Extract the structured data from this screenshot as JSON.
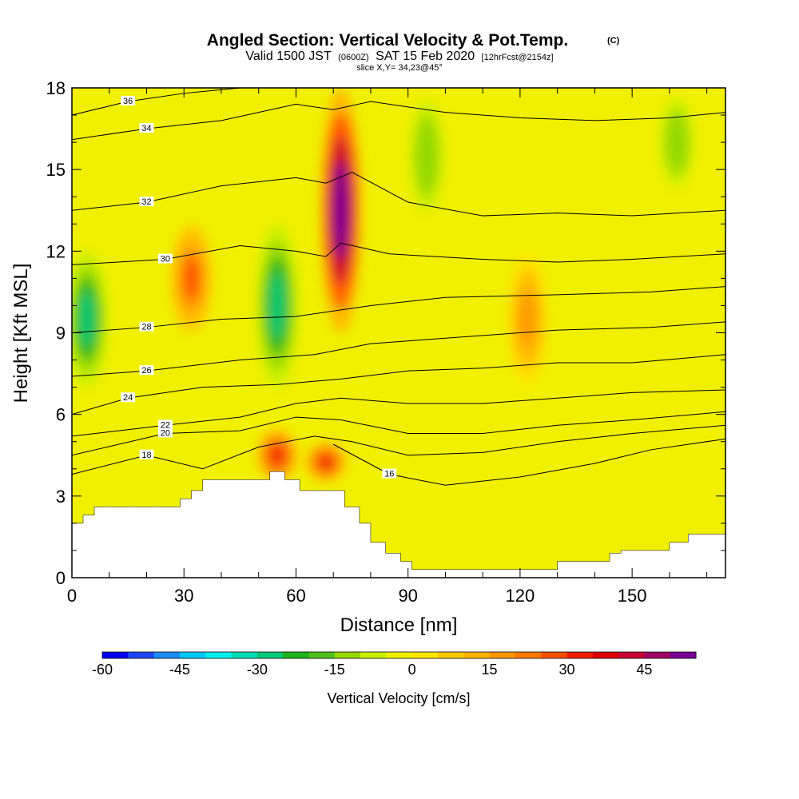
{
  "header": {
    "title": "Angled Section: Vertical Velocity & Pot.Temp.",
    "title_suffix": "(C)",
    "subtitle_part1": "Valid 1500 JST",
    "subtitle_zulu": "(0600Z)",
    "subtitle_part2": "SAT 15 Feb 2020",
    "subtitle_fcst": "[12hrFcst@2154z]",
    "slice_info": "slice X,Y= 34,23@45°"
  },
  "chart_data": {
    "type": "heatmap",
    "xlabel": "Distance [nm]",
    "ylabel": "Height [Kft MSL]",
    "xlim": [
      0,
      175
    ],
    "ylim": [
      0,
      18
    ],
    "x_ticks": [
      0,
      30,
      60,
      90,
      120,
      150
    ],
    "y_ticks": [
      0,
      3,
      6,
      9,
      12,
      15,
      18
    ],
    "colorbar": {
      "label": "Vertical Velocity [cm/s]",
      "range": [
        -60,
        55
      ],
      "step": 5,
      "tick_values": [
        -60,
        -45,
        -30,
        -15,
        0,
        15,
        30,
        45
      ],
      "colors": [
        "#0000f0",
        "#1e46f5",
        "#1e8cf5",
        "#00c8fa",
        "#00f0f0",
        "#00dcb4",
        "#00c878",
        "#1eb41e",
        "#50c01e",
        "#96d800",
        "#c8f000",
        "#f0f000",
        "#ffe600",
        "#ffc800",
        "#ffb400",
        "#ff9600",
        "#ff7800",
        "#ff5000",
        "#f01e00",
        "#dc0000",
        "#c80032",
        "#a00064",
        "#780096"
      ]
    },
    "vertical_velocity_features": [
      {
        "kind": "updraft",
        "x": 72,
        "y_min": 9,
        "y_max": 18,
        "peak": 55
      },
      {
        "kind": "downdraft",
        "x": 55,
        "y_min": 7,
        "y_max": 13,
        "peak": -30
      },
      {
        "kind": "downdraft",
        "x": 4,
        "y_min": 7,
        "y_max": 12,
        "peak": -30
      },
      {
        "kind": "updraft",
        "x": 32,
        "y_min": 9,
        "y_max": 13,
        "peak": 25
      },
      {
        "kind": "updraft",
        "x": 55,
        "y_min": 3.5,
        "y_max": 5.5,
        "peak": 30
      },
      {
        "kind": "updraft",
        "x": 68,
        "y_min": 3.5,
        "y_max": 5,
        "peak": 30
      },
      {
        "kind": "downdraft",
        "x": 95,
        "y_min": 13,
        "y_max": 18,
        "peak": -15
      },
      {
        "kind": "downdraft",
        "x": 162,
        "y_min": 14,
        "y_max": 18,
        "peak": -15
      },
      {
        "kind": "updraft",
        "x": 122,
        "y_min": 7,
        "y_max": 12,
        "peak": 15
      }
    ],
    "terrain": {
      "x": [
        0,
        3,
        6,
        10,
        15,
        23,
        29,
        32,
        35,
        45,
        53,
        57,
        61,
        65,
        70,
        73,
        77,
        80,
        84,
        88,
        91,
        104,
        126,
        130,
        144,
        147,
        156,
        160,
        165,
        175
      ],
      "height": [
        2,
        2.3,
        2.6,
        2.6,
        2.6,
        2.6,
        2.9,
        3.2,
        3.6,
        3.6,
        3.9,
        3.6,
        3.2,
        3.2,
        3.2,
        2.6,
        2.0,
        1.3,
        0.9,
        0.6,
        0.3,
        0.3,
        0.3,
        0.6,
        0.9,
        1.0,
        1.0,
        1.3,
        1.6,
        1.6
      ]
    },
    "potential_temperature_contours": [
      {
        "level": 16,
        "points": [
          [
            70,
            4.9
          ],
          [
            85,
            3.8
          ],
          [
            100,
            3.4
          ],
          [
            120,
            3.7
          ],
          [
            140,
            4.2
          ],
          [
            155,
            4.7
          ],
          [
            175,
            5.1
          ]
        ]
      },
      {
        "level": 18,
        "points": [
          [
            0,
            3.8
          ],
          [
            20,
            4.5
          ],
          [
            35,
            4.0
          ],
          [
            50,
            4.8
          ],
          [
            65,
            5.2
          ],
          [
            75,
            5.0
          ],
          [
            90,
            4.5
          ],
          [
            110,
            4.6
          ],
          [
            130,
            5.0
          ],
          [
            150,
            5.3
          ],
          [
            175,
            5.6
          ]
        ]
      },
      {
        "level": 20,
        "points": [
          [
            0,
            4.5
          ],
          [
            25,
            5.3
          ],
          [
            45,
            5.4
          ],
          [
            60,
            5.9
          ],
          [
            72,
            5.8
          ],
          [
            90,
            5.3
          ],
          [
            110,
            5.3
          ],
          [
            130,
            5.6
          ],
          [
            150,
            5.8
          ],
          [
            175,
            6.1
          ]
        ]
      },
      {
        "level": 22,
        "points": [
          [
            0,
            5.2
          ],
          [
            25,
            5.6
          ],
          [
            45,
            5.9
          ],
          [
            60,
            6.4
          ],
          [
            72,
            6.6
          ],
          [
            90,
            6.4
          ],
          [
            110,
            6.4
          ],
          [
            130,
            6.6
          ],
          [
            150,
            6.8
          ],
          [
            175,
            6.9
          ]
        ]
      },
      {
        "level": 24,
        "points": [
          [
            0,
            6.0
          ],
          [
            15,
            6.6
          ],
          [
            35,
            7.0
          ],
          [
            55,
            7.1
          ],
          [
            72,
            7.3
          ],
          [
            90,
            7.6
          ],
          [
            110,
            7.7
          ],
          [
            130,
            7.9
          ],
          [
            150,
            7.9
          ],
          [
            175,
            8.2
          ]
        ]
      },
      {
        "level": 26,
        "points": [
          [
            0,
            7.4
          ],
          [
            20,
            7.6
          ],
          [
            45,
            8.0
          ],
          [
            65,
            8.2
          ],
          [
            80,
            8.6
          ],
          [
            100,
            8.8
          ],
          [
            130,
            9.1
          ],
          [
            155,
            9.2
          ],
          [
            175,
            9.4
          ]
        ]
      },
      {
        "level": 28,
        "points": [
          [
            0,
            9.0
          ],
          [
            20,
            9.2
          ],
          [
            40,
            9.5
          ],
          [
            60,
            9.6
          ],
          [
            80,
            10.0
          ],
          [
            100,
            10.3
          ],
          [
            130,
            10.4
          ],
          [
            155,
            10.5
          ],
          [
            175,
            10.7
          ]
        ]
      },
      {
        "level": 30,
        "points": [
          [
            0,
            11.5
          ],
          [
            25,
            11.7
          ],
          [
            45,
            12.2
          ],
          [
            60,
            12.0
          ],
          [
            68,
            11.8
          ],
          [
            72,
            12.3
          ],
          [
            85,
            11.9
          ],
          [
            110,
            11.7
          ],
          [
            130,
            11.6
          ],
          [
            150,
            11.7
          ],
          [
            175,
            11.9
          ]
        ]
      },
      {
        "level": 32,
        "points": [
          [
            0,
            13.5
          ],
          [
            20,
            13.8
          ],
          [
            40,
            14.4
          ],
          [
            60,
            14.7
          ],
          [
            68,
            14.5
          ],
          [
            75,
            14.9
          ],
          [
            90,
            13.8
          ],
          [
            110,
            13.3
          ],
          [
            130,
            13.4
          ],
          [
            150,
            13.3
          ],
          [
            175,
            13.5
          ]
        ]
      },
      {
        "level": 34,
        "points": [
          [
            0,
            16.1
          ],
          [
            20,
            16.5
          ],
          [
            40,
            16.8
          ],
          [
            60,
            17.4
          ],
          [
            70,
            17.2
          ],
          [
            80,
            17.5
          ],
          [
            100,
            17.1
          ],
          [
            120,
            16.9
          ],
          [
            140,
            16.8
          ],
          [
            160,
            16.9
          ],
          [
            175,
            17.1
          ]
        ]
      },
      {
        "level": 36,
        "points": [
          [
            0,
            17.0
          ],
          [
            15,
            17.5
          ],
          [
            30,
            17.8
          ],
          [
            45,
            18.0
          ]
        ]
      }
    ]
  }
}
